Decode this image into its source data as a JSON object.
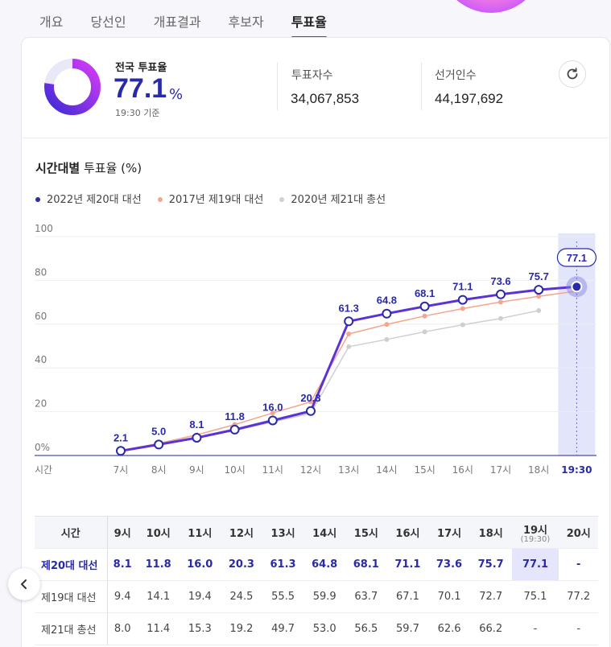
{
  "tabs": [
    "개요",
    "당선인",
    "개표결과",
    "후보자",
    "투표율"
  ],
  "summary": {
    "label": "전국 투표율",
    "value": "77.1",
    "unit": "%",
    "time": "19:30 기준",
    "progress": 77.1,
    "voters_label": "투표자수",
    "voters_value": "34,067,853",
    "electorate_label": "선거인수",
    "electorate_value": "44,197,692"
  },
  "chart_title_bold": "시간대별",
  "chart_title_rest": " 투표율 (%)",
  "colors": {
    "s2022": "#5a33d6",
    "s2017": "#f3a68e",
    "s2020": "#cfcfcf",
    "accent": "#2a2aa8"
  },
  "chart_data": {
    "type": "line",
    "title": "시간대별 투표율 (%)",
    "xlabel": "시간",
    "ylabel": "",
    "x": [
      "7시",
      "8시",
      "9시",
      "10시",
      "11시",
      "12시",
      "13시",
      "14시",
      "15시",
      "16시",
      "17시",
      "18시",
      "19:30"
    ],
    "y_ticks": [
      "0%",
      "20",
      "40",
      "60",
      "80",
      "100"
    ],
    "ylim": [
      0,
      100
    ],
    "legend_position": "top-left",
    "highlight": "19:30",
    "series": [
      {
        "name": "2022년 제20대 대선",
        "values": [
          2.1,
          5.0,
          8.1,
          11.8,
          16.0,
          20.3,
          61.3,
          64.8,
          68.1,
          71.1,
          73.6,
          75.7,
          77.1
        ],
        "labels": [
          "2.1",
          "5.0",
          "8.1",
          "11.8",
          "16.0",
          "20.3",
          "61.3",
          "64.8",
          "68.1",
          "71.1",
          "73.6",
          "75.7",
          "77.1"
        ]
      },
      {
        "name": "2017년 제19대 대선",
        "values": [
          2.3,
          5.5,
          9.4,
          14.1,
          19.4,
          24.5,
          55.5,
          59.9,
          63.7,
          67.1,
          70.1,
          72.7,
          75.1
        ]
      },
      {
        "name": "2020년 제21대 총선",
        "values": [
          2.0,
          4.9,
          8.0,
          11.4,
          15.3,
          19.2,
          49.7,
          53.0,
          56.5,
          59.7,
          62.6,
          66.2,
          null
        ]
      }
    ]
  },
  "table": {
    "corner": "시간",
    "headers": [
      "9시",
      "10시",
      "11시",
      "12시",
      "13시",
      "14시",
      "15시",
      "16시",
      "17시",
      "18시",
      "19시",
      "20시"
    ],
    "header_sub": "(19:30)",
    "rows": [
      {
        "label": "제20대 대선",
        "cells": [
          "8.1",
          "11.8",
          "16.0",
          "20.3",
          "61.3",
          "64.8",
          "68.1",
          "71.1",
          "73.6",
          "75.7",
          "77.1",
          "-"
        ]
      },
      {
        "label": "제19대 대선",
        "cells": [
          "9.4",
          "14.1",
          "19.4",
          "24.5",
          "55.5",
          "59.9",
          "63.7",
          "67.1",
          "70.1",
          "72.7",
          "75.1",
          "77.2"
        ]
      },
      {
        "label": "제21대 총선",
        "cells": [
          "8.0",
          "11.4",
          "15.3",
          "19.2",
          "49.7",
          "53.0",
          "56.5",
          "59.7",
          "62.6",
          "66.2",
          "-",
          "-"
        ]
      }
    ]
  }
}
